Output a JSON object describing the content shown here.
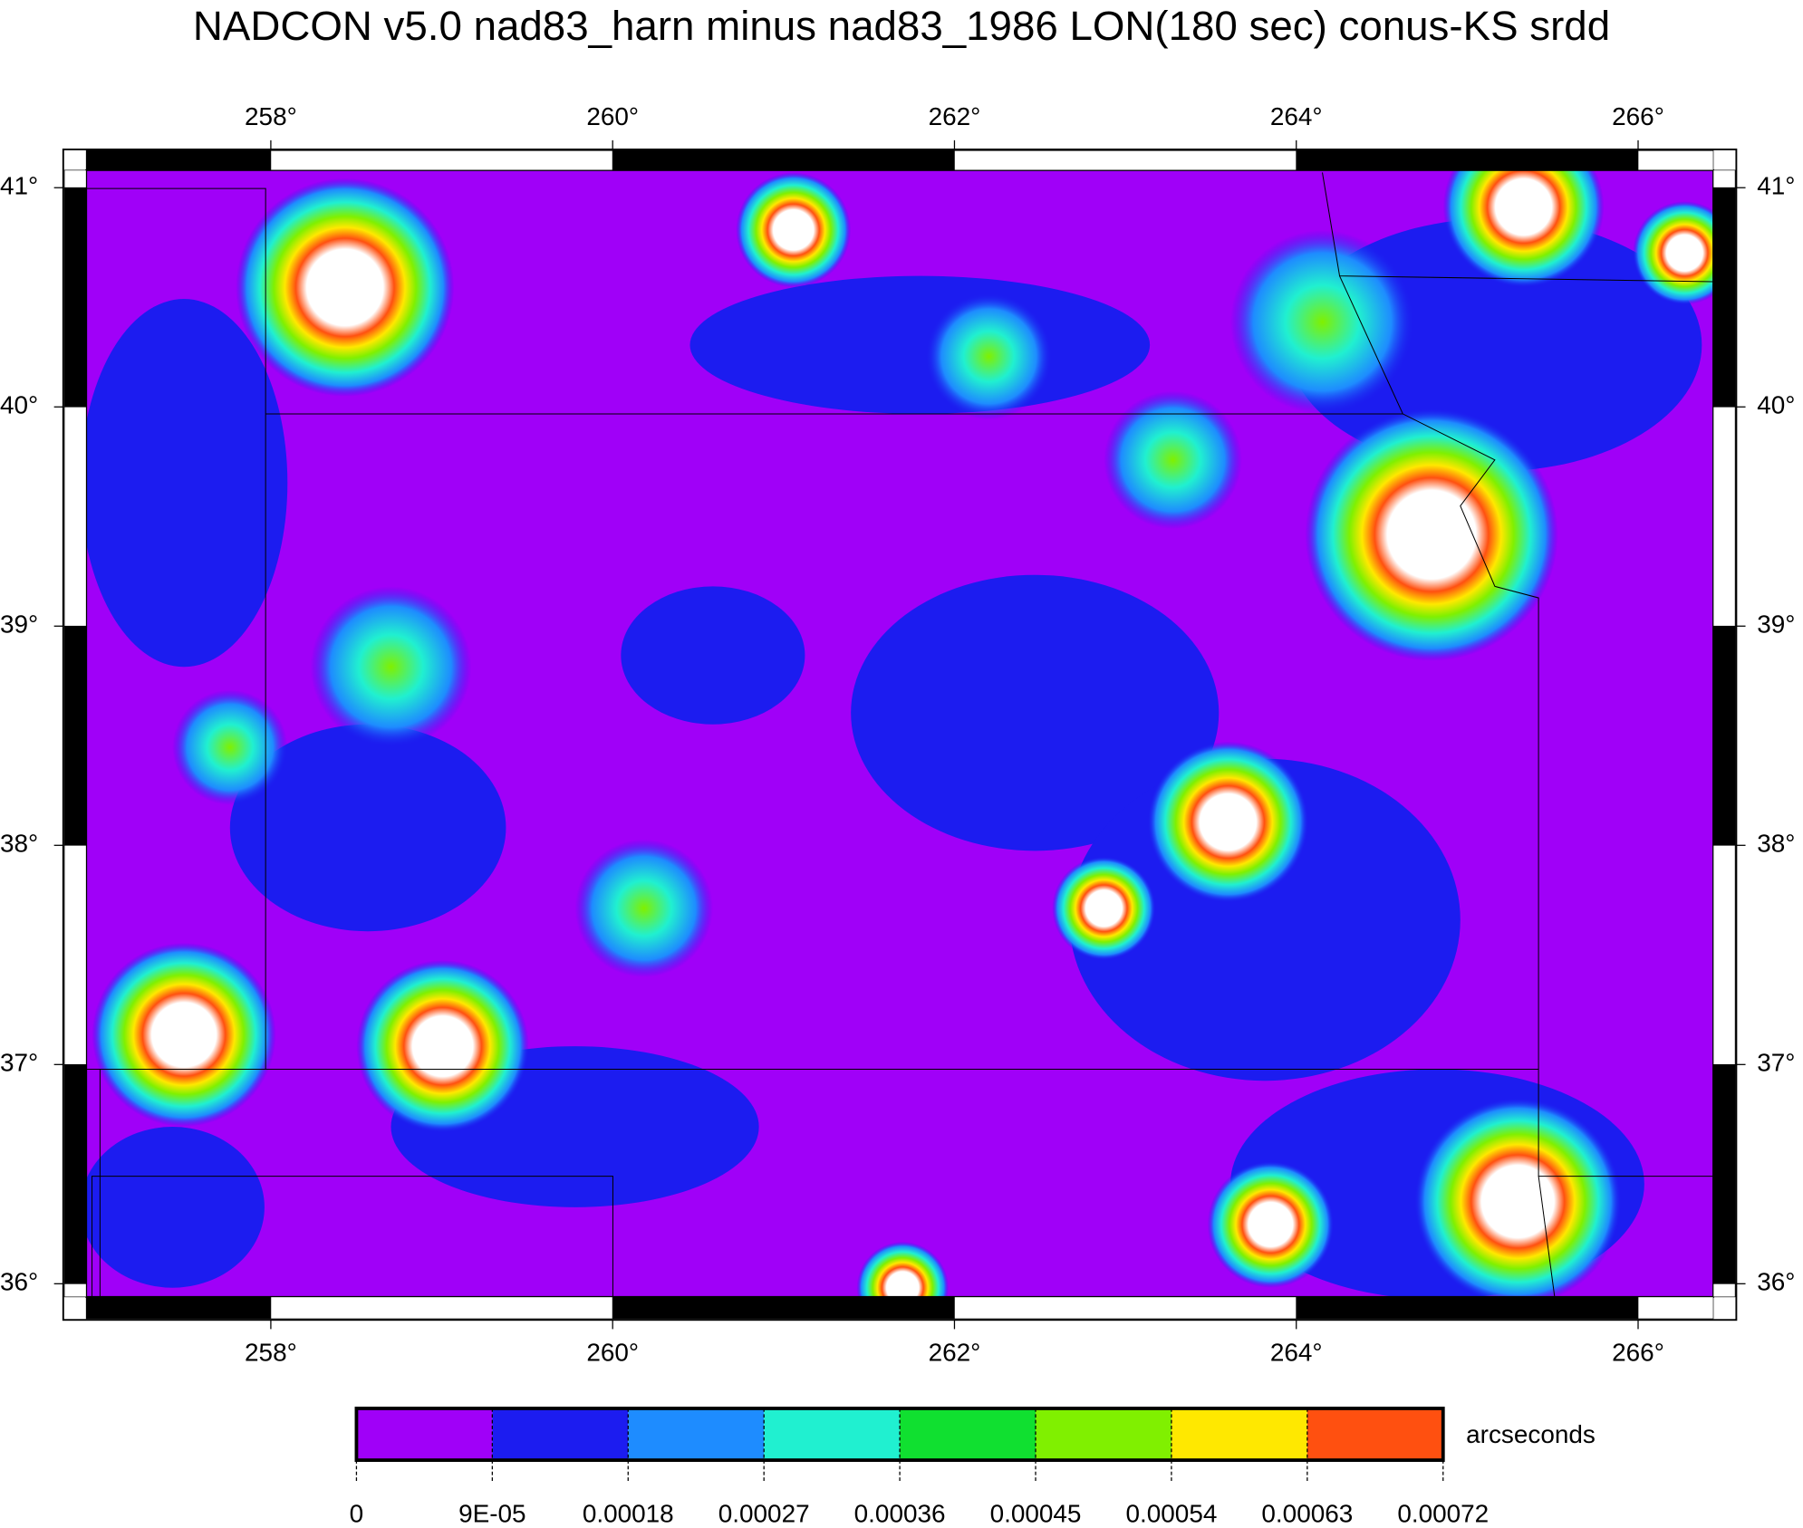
{
  "chart_data": {
    "type": "map",
    "title": "NADCON v5.0 nad83_harn minus nad83_1986 LON(180 sec) conus-KS srdd",
    "xlim": [
      256.92,
      266.44
    ],
    "ylim": [
      35.94,
      41.08
    ],
    "xticks": [
      {
        "value": 258,
        "label": "258°"
      },
      {
        "value": 260,
        "label": "260°"
      },
      {
        "value": 262,
        "label": "262°"
      },
      {
        "value": 264,
        "label": "264°"
      },
      {
        "value": 266,
        "label": "266°"
      }
    ],
    "yticks": [
      {
        "value": 36,
        "label": "36°"
      },
      {
        "value": 37,
        "label": "37°"
      },
      {
        "value": 38,
        "label": "38°"
      },
      {
        "value": 39,
        "label": "39°"
      },
      {
        "value": 40,
        "label": "40°"
      },
      {
        "value": 41,
        "label": "41°"
      }
    ],
    "colorbar": {
      "label": "arcseconds",
      "clim": [
        0,
        0.00072
      ],
      "ticks": [
        0,
        {
          "value": 9e-05,
          "label": "9E-05"
        },
        0.00018,
        0.00027,
        0.00036,
        0.00045,
        0.00054,
        0.00063,
        0.00072
      ],
      "colors": [
        "#a000f8",
        "#1c1cf0",
        "#1e8cff",
        "#20f0d0",
        "#10e030",
        "#80f000",
        "#ffe800",
        "#ff5010"
      ]
    }
  }
}
